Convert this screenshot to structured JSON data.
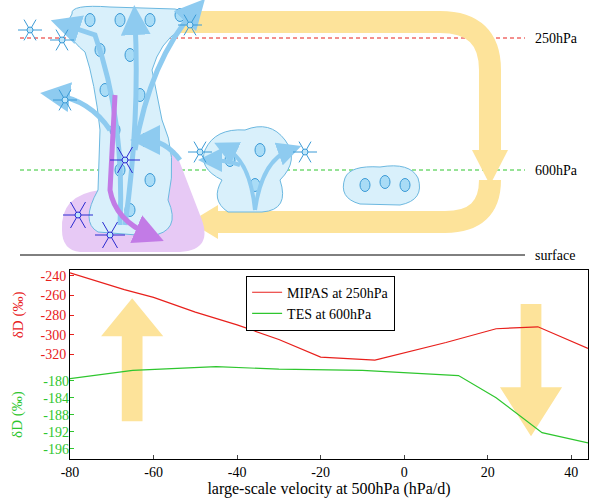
{
  "chart_data": {
    "type": "line",
    "x_label": "large-scale velocity at 500hPa (hPa/d)",
    "xlim": [
      -80,
      44
    ],
    "xticks": [
      -80,
      -60,
      -40,
      -20,
      0,
      20,
      40
    ],
    "y_label": "δD (‰)",
    "ylim": [
      -427,
      -234
    ],
    "yticks": [
      -240,
      -260,
      -280,
      -300,
      -320
    ],
    "y2_label": "δD (‰)",
    "y2lim": [
      -198.4,
      -154
    ],
    "y2ticks": [
      -180,
      -184,
      -188,
      -192,
      -196
    ],
    "legend": "top",
    "series": [
      {
        "name": "MIPAS at 250hPa",
        "color": "#e8201c",
        "x": [
          -80,
          -67,
          -60,
          -50,
          -40,
          -30,
          -20,
          -7,
          10,
          22,
          32,
          44
        ],
        "values": [
          -237,
          -254,
          -262,
          -277,
          -290,
          -305,
          -323,
          -326,
          -308,
          -294,
          -292,
          -314
        ]
      },
      {
        "name": "TES at 600hPa",
        "color": "#2ec62e",
        "axis": "y2",
        "x": [
          -80,
          -65,
          -45,
          -30,
          -10,
          13,
          22,
          33,
          44
        ],
        "values": [
          -179.5,
          -177.6,
          -176.7,
          -177.3,
          -177.6,
          -178.8,
          -184,
          -192.2,
          -194.6
        ]
      }
    ]
  },
  "diagram": {
    "levels": [
      "250hPa",
      "600hPa",
      "surface"
    ]
  }
}
